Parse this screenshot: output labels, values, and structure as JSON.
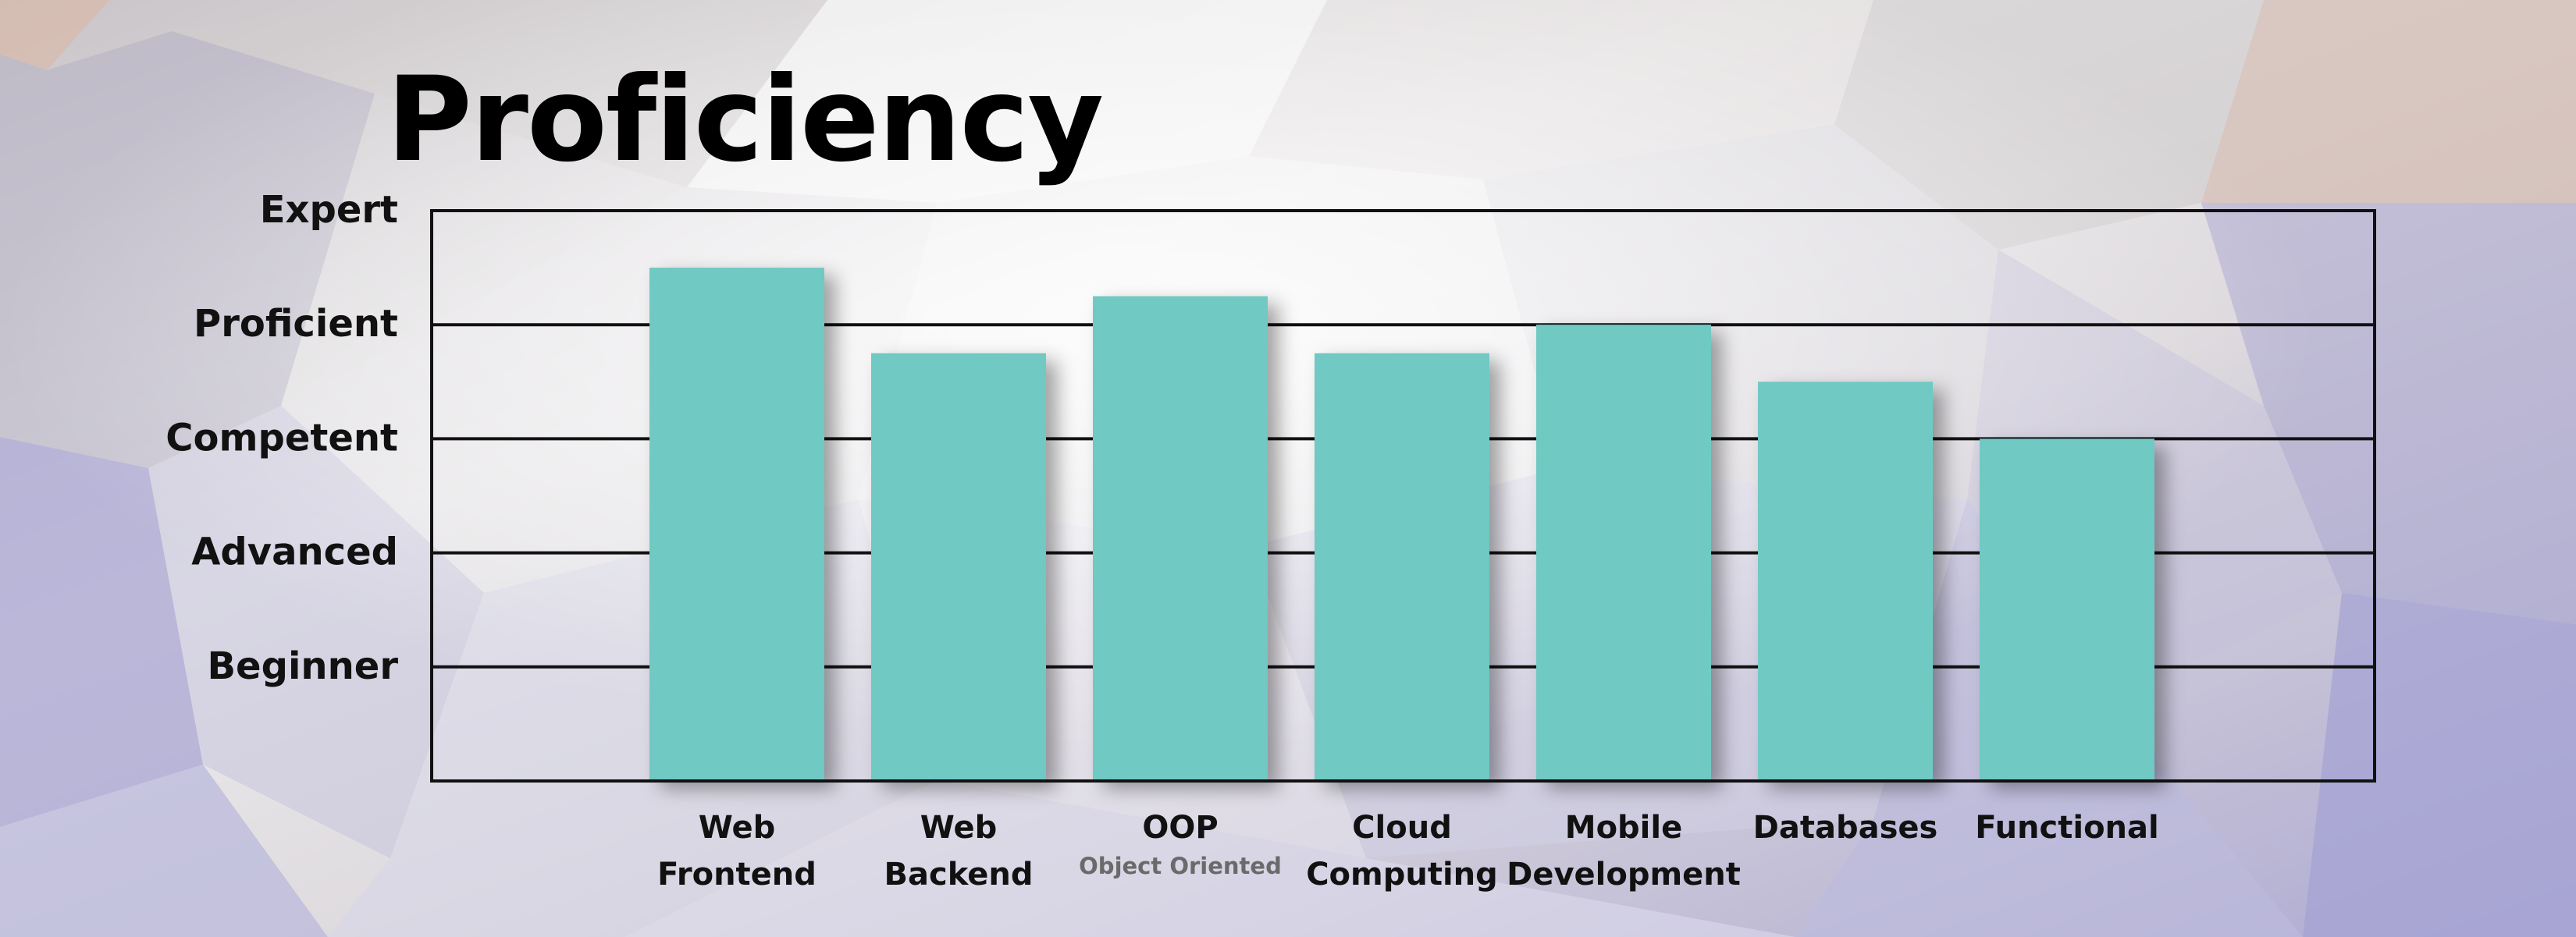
{
  "chart_data": {
    "type": "bar",
    "title": "Proficiency",
    "xlabel": "",
    "ylabel": "",
    "categories": [
      {
        "lines": [
          "Web",
          "Frontend"
        ],
        "sub": ""
      },
      {
        "lines": [
          "Web",
          "Backend"
        ],
        "sub": ""
      },
      {
        "lines": [
          "OOP"
        ],
        "sub": "Object Oriented"
      },
      {
        "lines": [
          "Cloud",
          "Computing"
        ],
        "sub": ""
      },
      {
        "lines": [
          "Mobile",
          "Development"
        ],
        "sub": ""
      },
      {
        "lines": [
          "Databases"
        ],
        "sub": ""
      },
      {
        "lines": [
          "Functional"
        ],
        "sub": ""
      }
    ],
    "values": [
      4.5,
      3.75,
      4.25,
      3.75,
      4.0,
      3.5,
      3.0
    ],
    "yticks": [
      {
        "value": 1,
        "label": "Beginner"
      },
      {
        "value": 2,
        "label": "Advanced"
      },
      {
        "value": 3,
        "label": "Competent"
      },
      {
        "value": 4,
        "label": "Proficient"
      },
      {
        "value": 5,
        "label": "Expert"
      }
    ],
    "ylim": [
      0,
      5
    ],
    "grid": true,
    "colors": {
      "bar": "#70c9c3",
      "axis": "#111111"
    }
  }
}
